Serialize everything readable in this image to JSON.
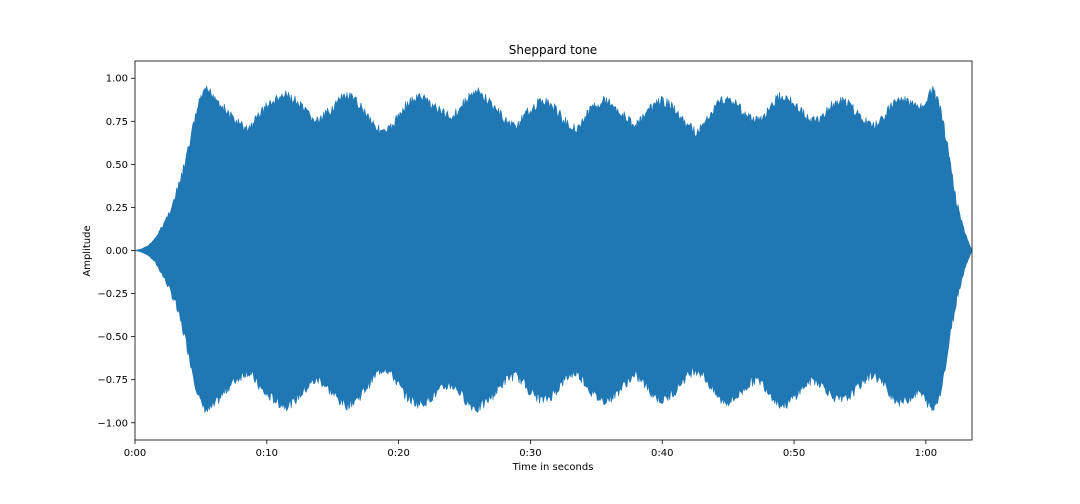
{
  "chart_data": {
    "type": "area",
    "title": "Sheppard tone",
    "xlabel": "Time in seconds",
    "ylabel": "Amplitude",
    "xlim": [
      0,
      63.5
    ],
    "ylim": [
      -1.1,
      1.1
    ],
    "x_ticks": [
      {
        "value": 0,
        "label": "0:00"
      },
      {
        "value": 10,
        "label": "0:10"
      },
      {
        "value": 20,
        "label": "0:20"
      },
      {
        "value": 30,
        "label": "0:30"
      },
      {
        "value": 40,
        "label": "0:40"
      },
      {
        "value": 50,
        "label": "0:50"
      },
      {
        "value": 60,
        "label": "1:00"
      }
    ],
    "y_ticks": [
      {
        "value": 1.0,
        "label": "1.00"
      },
      {
        "value": 0.75,
        "label": "0.75"
      },
      {
        "value": 0.5,
        "label": "0.50"
      },
      {
        "value": 0.25,
        "label": "0.25"
      },
      {
        "value": 0.0,
        "label": "0.00"
      },
      {
        "value": -0.25,
        "label": "−0.25"
      },
      {
        "value": -0.5,
        "label": "−0.50"
      },
      {
        "value": -0.75,
        "label": "−0.75"
      },
      {
        "value": -1.0,
        "label": "−1.00"
      }
    ],
    "grid": false,
    "series": [
      {
        "color": "#1f77b4",
        "envelope": [
          [
            0.0,
            0.0
          ],
          [
            0.5,
            0.01
          ],
          [
            1.0,
            0.03
          ],
          [
            1.5,
            0.07
          ],
          [
            2.0,
            0.14
          ],
          [
            2.5,
            0.22
          ],
          [
            3.0,
            0.32
          ],
          [
            3.5,
            0.45
          ],
          [
            4.0,
            0.6
          ],
          [
            4.5,
            0.78
          ],
          [
            5.0,
            0.92
          ],
          [
            5.5,
            0.96
          ],
          [
            6.0,
            0.93
          ],
          [
            6.5,
            0.88
          ],
          [
            7.0,
            0.83
          ],
          [
            7.5,
            0.79
          ],
          [
            8.0,
            0.76
          ],
          [
            8.5,
            0.73
          ],
          [
            9.0,
            0.77
          ],
          [
            9.5,
            0.83
          ],
          [
            10.0,
            0.87
          ],
          [
            10.5,
            0.89
          ],
          [
            11.0,
            0.92
          ],
          [
            11.5,
            0.93
          ],
          [
            12.0,
            0.91
          ],
          [
            12.5,
            0.87
          ],
          [
            13.0,
            0.83
          ],
          [
            13.5,
            0.79
          ],
          [
            14.0,
            0.78
          ],
          [
            14.5,
            0.82
          ],
          [
            15.0,
            0.86
          ],
          [
            15.5,
            0.9
          ],
          [
            16.0,
            0.93
          ],
          [
            16.5,
            0.91
          ],
          [
            17.0,
            0.88
          ],
          [
            17.5,
            0.83
          ],
          [
            18.0,
            0.78
          ],
          [
            18.5,
            0.73
          ],
          [
            19.0,
            0.71
          ],
          [
            19.5,
            0.75
          ],
          [
            20.0,
            0.81
          ],
          [
            20.5,
            0.87
          ],
          [
            21.0,
            0.9
          ],
          [
            21.5,
            0.92
          ],
          [
            22.0,
            0.91
          ],
          [
            22.5,
            0.88
          ],
          [
            23.0,
            0.85
          ],
          [
            23.5,
            0.82
          ],
          [
            24.0,
            0.81
          ],
          [
            24.5,
            0.84
          ],
          [
            25.0,
            0.89
          ],
          [
            25.5,
            0.93
          ],
          [
            26.0,
            0.95
          ],
          [
            26.5,
            0.92
          ],
          [
            27.0,
            0.88
          ],
          [
            27.5,
            0.84
          ],
          [
            28.0,
            0.79
          ],
          [
            28.5,
            0.76
          ],
          [
            29.0,
            0.76
          ],
          [
            29.5,
            0.8
          ],
          [
            30.0,
            0.85
          ],
          [
            30.5,
            0.88
          ],
          [
            31.0,
            0.9
          ],
          [
            31.5,
            0.88
          ],
          [
            32.0,
            0.84
          ],
          [
            32.5,
            0.79
          ],
          [
            33.0,
            0.75
          ],
          [
            33.5,
            0.74
          ],
          [
            34.0,
            0.78
          ],
          [
            34.5,
            0.84
          ],
          [
            35.0,
            0.88
          ],
          [
            35.5,
            0.9
          ],
          [
            36.0,
            0.89
          ],
          [
            36.5,
            0.86
          ],
          [
            37.0,
            0.82
          ],
          [
            37.5,
            0.78
          ],
          [
            38.0,
            0.76
          ],
          [
            38.5,
            0.79
          ],
          [
            39.0,
            0.84
          ],
          [
            39.5,
            0.88
          ],
          [
            40.0,
            0.9
          ],
          [
            40.5,
            0.88
          ],
          [
            41.0,
            0.84
          ],
          [
            41.5,
            0.79
          ],
          [
            42.0,
            0.75
          ],
          [
            42.5,
            0.72
          ],
          [
            43.0,
            0.74
          ],
          [
            43.5,
            0.8
          ],
          [
            44.0,
            0.86
          ],
          [
            44.5,
            0.9
          ],
          [
            45.0,
            0.91
          ],
          [
            45.5,
            0.89
          ],
          [
            46.0,
            0.85
          ],
          [
            46.5,
            0.81
          ],
          [
            47.0,
            0.78
          ],
          [
            47.5,
            0.79
          ],
          [
            48.0,
            0.84
          ],
          [
            48.5,
            0.89
          ],
          [
            49.0,
            0.93
          ],
          [
            49.5,
            0.92
          ],
          [
            50.0,
            0.88
          ],
          [
            50.5,
            0.84
          ],
          [
            51.0,
            0.8
          ],
          [
            51.5,
            0.78
          ],
          [
            52.0,
            0.8
          ],
          [
            52.5,
            0.84
          ],
          [
            53.0,
            0.88
          ],
          [
            53.5,
            0.9
          ],
          [
            54.0,
            0.89
          ],
          [
            54.5,
            0.85
          ],
          [
            55.0,
            0.81
          ],
          [
            55.5,
            0.77
          ],
          [
            56.0,
            0.75
          ],
          [
            56.5,
            0.78
          ],
          [
            57.0,
            0.83
          ],
          [
            57.5,
            0.88
          ],
          [
            58.0,
            0.91
          ],
          [
            58.5,
            0.9
          ],
          [
            59.0,
            0.87
          ],
          [
            59.5,
            0.85
          ],
          [
            60.0,
            0.9
          ],
          [
            60.5,
            0.96
          ],
          [
            61.0,
            0.88
          ],
          [
            61.5,
            0.7
          ],
          [
            62.0,
            0.45
          ],
          [
            62.5,
            0.25
          ],
          [
            63.0,
            0.1
          ],
          [
            63.5,
            0.0
          ]
        ]
      }
    ]
  }
}
